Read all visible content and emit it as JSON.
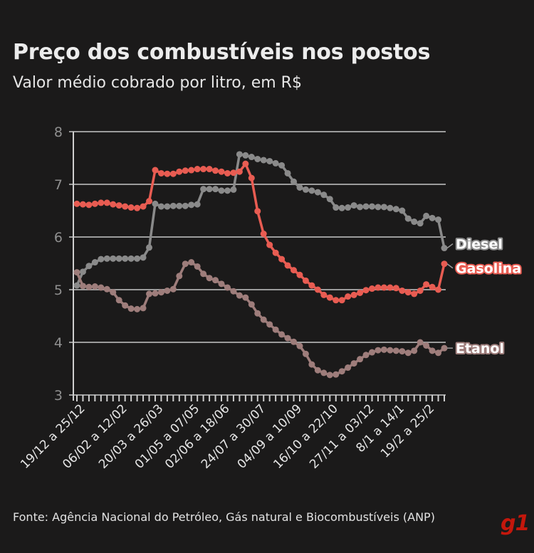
{
  "header": {
    "title": "Preço dos combustíveis nos postos",
    "subtitle": "Valor médio cobrado por litro, em R$"
  },
  "footer": {
    "source": "Fonte: Agência Nacional do Petróleo, Gás natural e Biocombustíveis (ANP)",
    "logo": "g1"
  },
  "colors": {
    "background": "#1b1a1a",
    "grid": "#9c9c9c",
    "diesel": "#8a8a8a",
    "gasolina": "#e85c52",
    "etanol": "#9e7d7b",
    "logo": "#c4170c"
  },
  "chart_data": {
    "type": "line",
    "title": "Preço dos combustíveis nos postos",
    "subtitle": "Valor médio cobrado por litro, em R$",
    "ylim": [
      3,
      8
    ],
    "yticks": [
      3,
      4,
      5,
      6,
      7,
      8
    ],
    "grid": true,
    "legend": "direct labels at right end of lines",
    "x_count": 62,
    "tick_labels": [
      {
        "index": 0,
        "label": "19/12 a 25/12"
      },
      {
        "index": 7,
        "label": "06/02 a 12/02"
      },
      {
        "index": 13,
        "label": "20/03 a 26/03"
      },
      {
        "index": 19,
        "label": "01/05 a 07/05"
      },
      {
        "index": 24,
        "label": "02/06 a 18/06"
      },
      {
        "index": 30,
        "label": "24/07 a 30/07"
      },
      {
        "index": 36,
        "label": "04/09 a 10/09"
      },
      {
        "index": 42,
        "label": "16/10 a 22/10"
      },
      {
        "index": 48,
        "label": "27/11 a 03/12"
      },
      {
        "index": 53,
        "label": "8/1 a 14/1"
      },
      {
        "index": 58,
        "label": "19/2 a 25/2"
      }
    ],
    "series": [
      {
        "name": "Diesel",
        "color": "#8a8a8a",
        "values": [
          5.08,
          5.34,
          5.45,
          5.52,
          5.58,
          5.59,
          5.59,
          5.59,
          5.59,
          5.59,
          5.59,
          5.61,
          5.8,
          6.63,
          6.58,
          6.58,
          6.59,
          6.59,
          6.59,
          6.61,
          6.62,
          6.91,
          6.91,
          6.91,
          6.88,
          6.88,
          6.9,
          7.57,
          7.55,
          7.52,
          7.48,
          7.46,
          7.44,
          7.4,
          7.36,
          7.21,
          7.05,
          6.94,
          6.9,
          6.88,
          6.85,
          6.8,
          6.72,
          6.56,
          6.55,
          6.56,
          6.6,
          6.57,
          6.58,
          6.58,
          6.57,
          6.57,
          6.55,
          6.53,
          6.5,
          6.35,
          6.29,
          6.26,
          6.4,
          6.36,
          6.33,
          5.79
        ]
      },
      {
        "name": "Gasolina",
        "color": "#e85c52",
        "values": [
          6.63,
          6.62,
          6.61,
          6.63,
          6.65,
          6.65,
          6.62,
          6.6,
          6.58,
          6.56,
          6.55,
          6.58,
          6.68,
          7.27,
          7.21,
          7.2,
          7.2,
          7.24,
          7.26,
          7.27,
          7.29,
          7.29,
          7.29,
          7.26,
          7.24,
          7.21,
          7.22,
          7.24,
          7.39,
          7.12,
          6.49,
          6.06,
          5.85,
          5.7,
          5.58,
          5.46,
          5.37,
          5.28,
          5.17,
          5.08,
          5.0,
          4.9,
          4.85,
          4.8,
          4.8,
          4.87,
          4.9,
          4.94,
          4.99,
          5.02,
          5.04,
          5.04,
          5.04,
          5.03,
          4.98,
          4.95,
          4.92,
          4.98,
          5.1,
          5.05,
          5.0,
          5.49
        ]
      },
      {
        "name": "Etanol",
        "color": "#9e7d7b",
        "values": [
          5.33,
          5.07,
          5.05,
          5.06,
          5.04,
          5.01,
          4.95,
          4.8,
          4.7,
          4.64,
          4.63,
          4.65,
          4.92,
          4.93,
          4.95,
          4.98,
          5.01,
          5.26,
          5.49,
          5.52,
          5.44,
          5.3,
          5.22,
          5.18,
          5.11,
          5.04,
          4.97,
          4.89,
          4.85,
          4.72,
          4.55,
          4.43,
          4.34,
          4.24,
          4.15,
          4.08,
          4.01,
          3.93,
          3.78,
          3.58,
          3.47,
          3.42,
          3.38,
          3.39,
          3.45,
          3.52,
          3.6,
          3.68,
          3.76,
          3.81,
          3.85,
          3.86,
          3.85,
          3.84,
          3.83,
          3.8,
          3.84,
          4.0,
          3.94,
          3.84,
          3.8,
          3.89
        ]
      }
    ]
  }
}
